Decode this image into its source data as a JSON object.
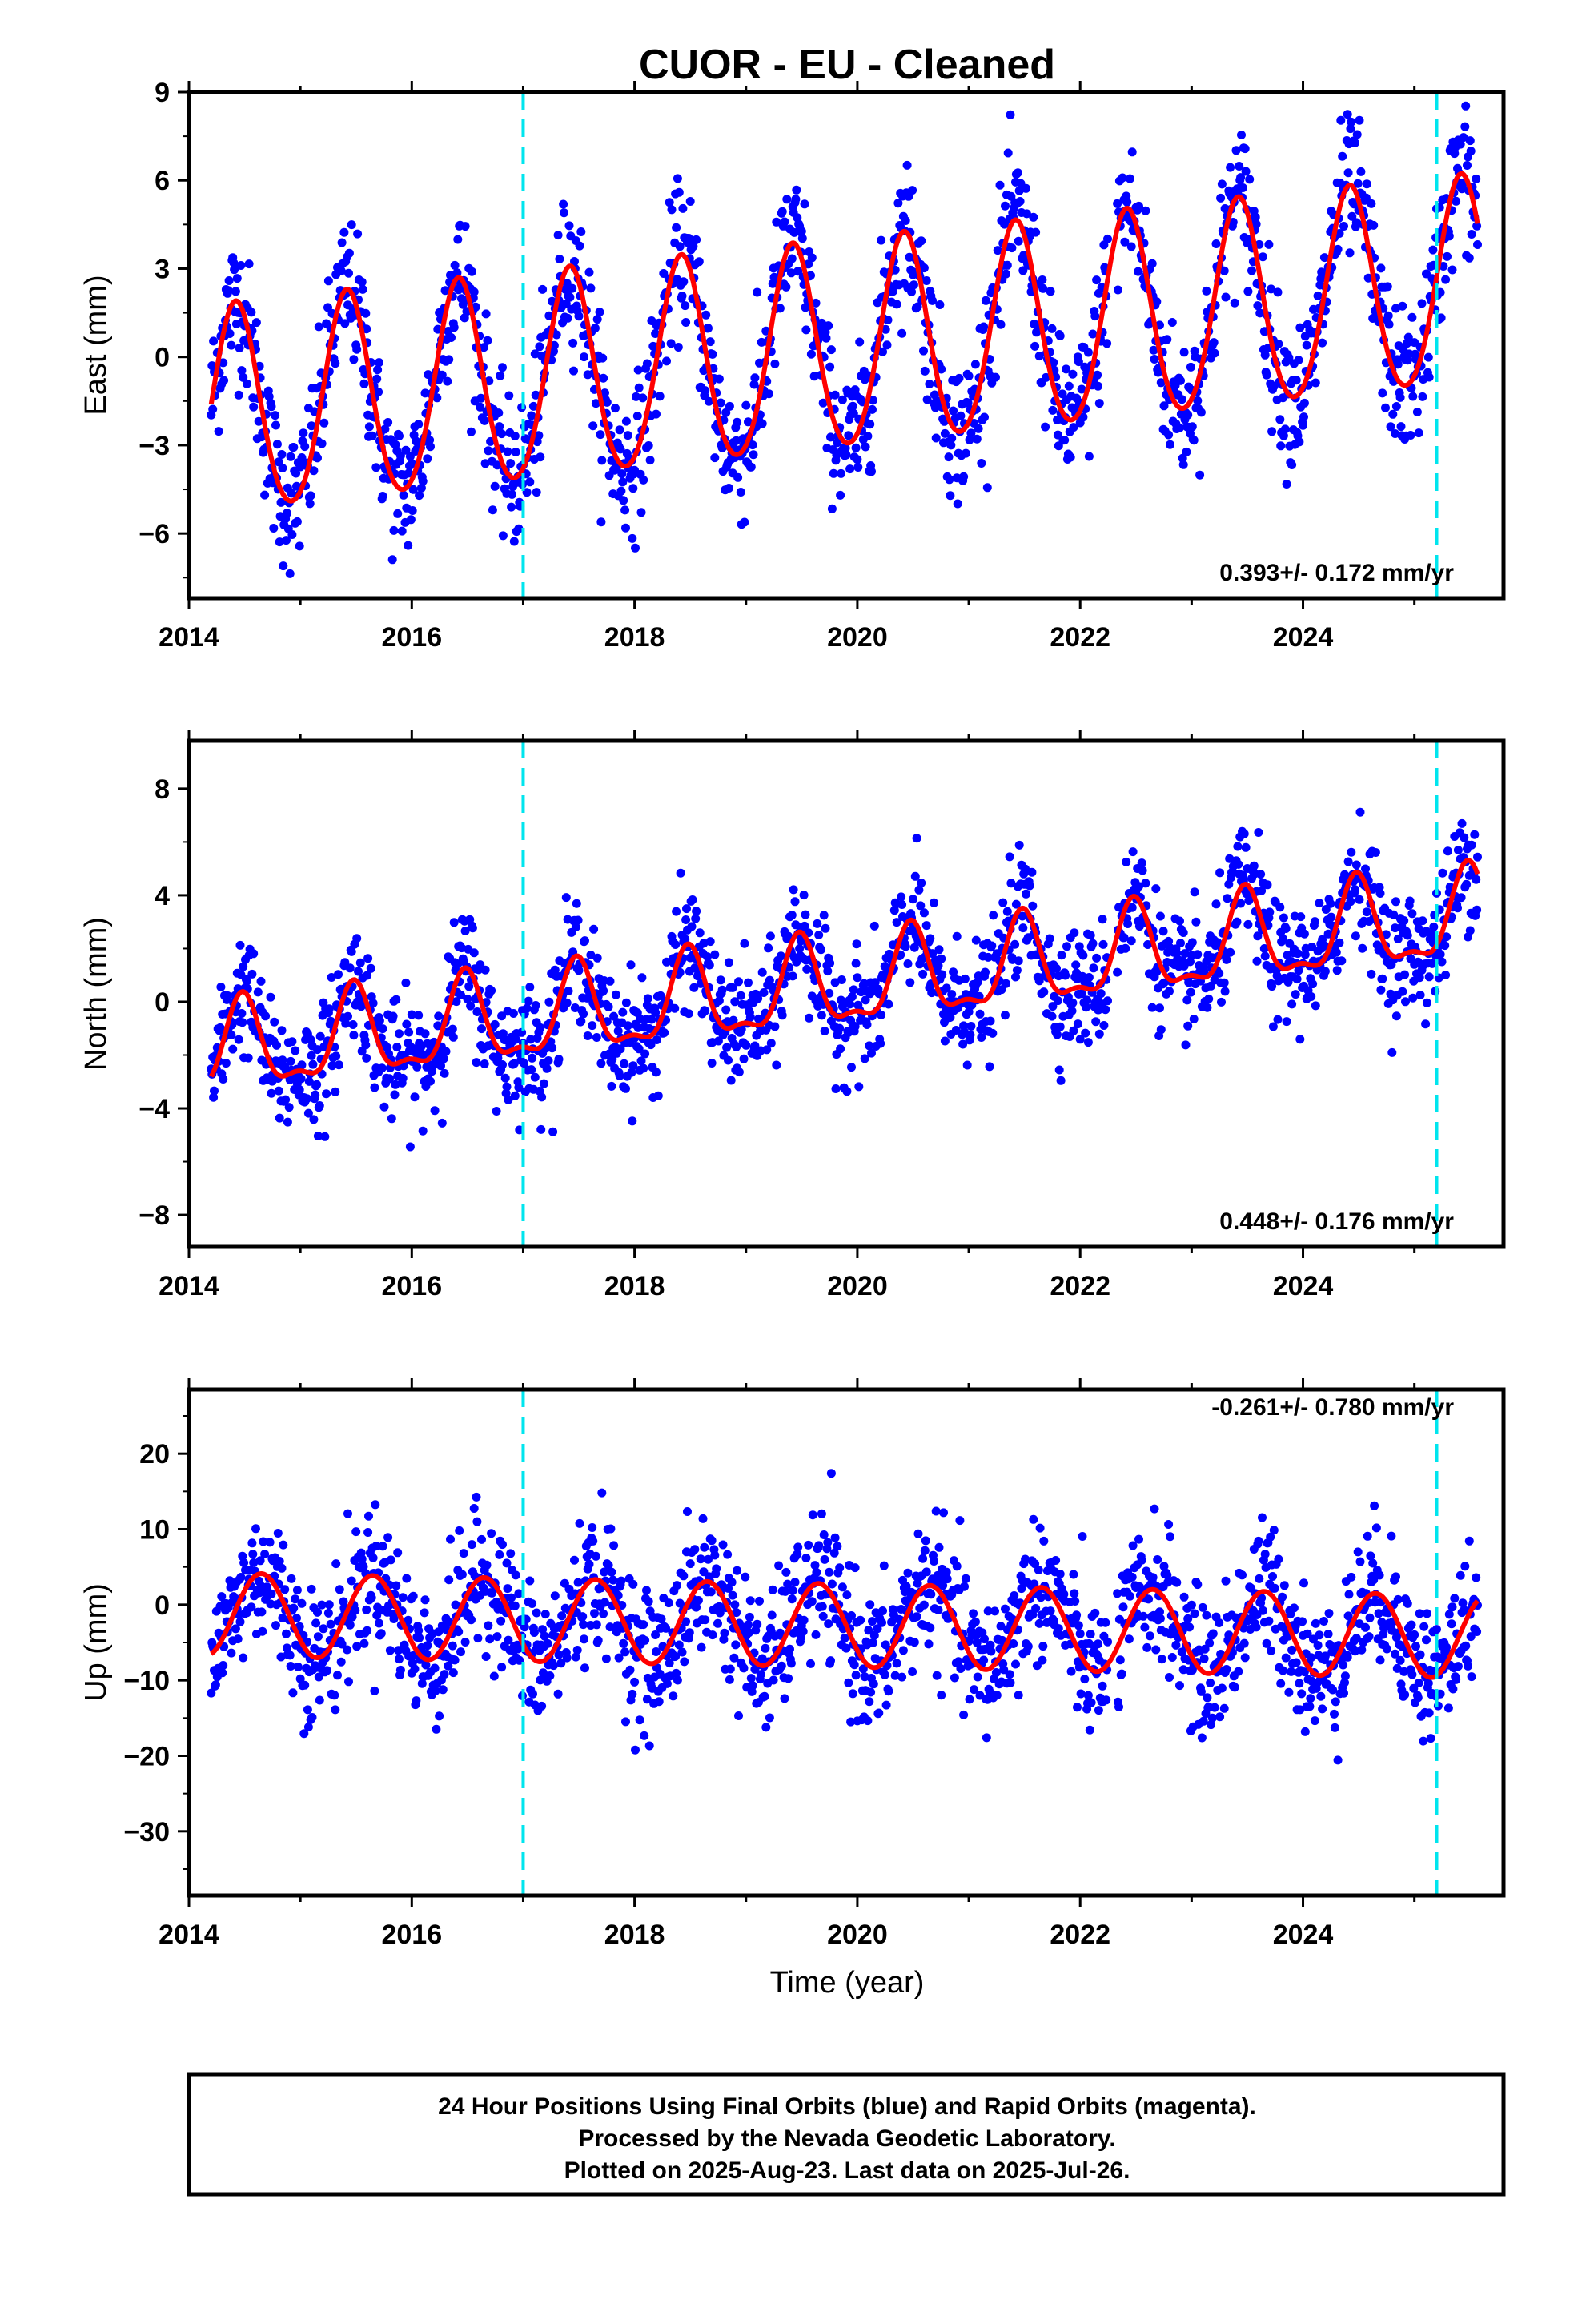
{
  "title": "CUOR  - EU - Cleaned",
  "footer": {
    "line1": "24 Hour Positions Using Final Orbits (blue) and Rapid Orbits (magenta).",
    "line2": "Processed by the Nevada Geodetic Laboratory.",
    "line3": "Plotted on 2025-Aug-23. Last data on 2025-Jul-26."
  },
  "colors": {
    "points": "#0000ff",
    "model": "#ff0000",
    "event_lines": "#00e5ee",
    "frame": "#000000"
  },
  "chart_data": [
    {
      "type": "scatter",
      "panel": "east",
      "ylabel": "East (mm)",
      "xlim": [
        2014.0,
        2025.8
      ],
      "ylim": [
        -8.2,
        9.0
      ],
      "yticks": [
        -6,
        -3,
        0,
        3,
        6,
        9
      ],
      "xticks": [
        2014,
        2016,
        2018,
        2020,
        2022,
        2024
      ],
      "xtick_labels": [
        "2014",
        "2016",
        "2018",
        "2020",
        "2022",
        "2024"
      ],
      "rate_label": "0.393+/- 0.172 mm/yr",
      "model": {
        "offset": 0.0,
        "trend": 0.393,
        "amp_annual": 3.5,
        "peak_phase": 0.42,
        "amp_semi": 0.3,
        "start_value": -1.6
      },
      "noise_sd": 1.2,
      "event_lines": [
        2017.0,
        2025.2
      ]
    },
    {
      "type": "scatter",
      "panel": "north",
      "ylabel": "North (mm)",
      "xlim": [
        2014.0,
        2025.8
      ],
      "ylim": [
        -9.2,
        9.8
      ],
      "yticks": [
        -8,
        -4,
        0,
        4,
        8
      ],
      "xticks": [
        2014,
        2016,
        2018,
        2020,
        2022,
        2024
      ],
      "xtick_labels": [
        "2014",
        "2016",
        "2018",
        "2020",
        "2022",
        "2024"
      ],
      "rate_label": "0.448+/- 0.176 mm/yr",
      "model": {
        "offset": 0.0,
        "trend": 0.448,
        "amp_annual": 1.6,
        "peak_phase": 0.48,
        "amp_semi": 0.6,
        "start_value": -2.8
      },
      "noise_sd": 1.1,
      "event_lines": [
        2017.0,
        2025.2
      ]
    },
    {
      "type": "scatter",
      "panel": "up",
      "ylabel": "Up (mm)",
      "xlabel": "Time (year)",
      "xlim": [
        2014.0,
        2025.8
      ],
      "ylim": [
        -38.5,
        28.5
      ],
      "yticks": [
        -30,
        -20,
        -10,
        0,
        10,
        20
      ],
      "xticks": [
        2014,
        2016,
        2018,
        2020,
        2022,
        2024
      ],
      "xtick_labels": [
        "2014",
        "2016",
        "2018",
        "2020",
        "2022",
        "2024"
      ],
      "rate_label": "-0.261+/- 0.780 mm/yr",
      "model": {
        "offset": 0.0,
        "trend": -0.261,
        "amp_annual": 5.5,
        "peak_phase": 0.65,
        "amp_semi": 0.0,
        "start_value": -6.5
      },
      "noise_sd": 4.5,
      "event_lines": [
        2017.0,
        2025.2
      ]
    }
  ]
}
